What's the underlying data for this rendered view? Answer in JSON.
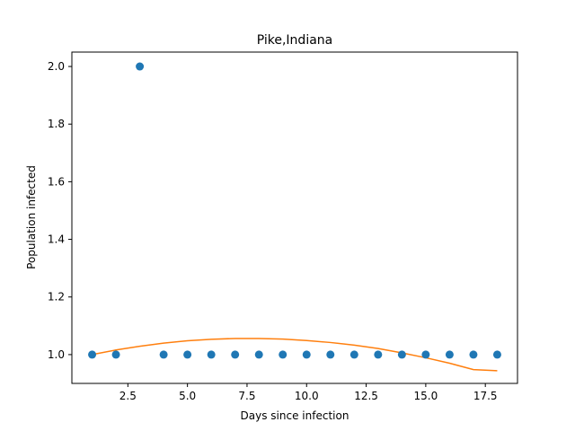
{
  "chart_data": {
    "type": "scatter",
    "title": "Pike,Indiana",
    "xlabel": "Days since infection",
    "ylabel": "Population infected",
    "xlim": [
      0.15,
      18.85
    ],
    "ylim": [
      0.9,
      2.05
    ],
    "xticks": [
      2.5,
      5.0,
      7.5,
      10.0,
      12.5,
      15.0,
      17.5
    ],
    "xtick_labels": [
      "2.5",
      "5.0",
      "7.5",
      "10.0",
      "12.5",
      "15.0",
      "17.5"
    ],
    "yticks": [
      1.0,
      1.2,
      1.4,
      1.6,
      1.8,
      2.0
    ],
    "ytick_labels": [
      "1.0",
      "1.2",
      "1.4",
      "1.6",
      "1.8",
      "2.0"
    ],
    "grid": false,
    "series": [
      {
        "kind": "points",
        "color": "#1f77b4",
        "x": [
          1,
          2,
          3,
          4,
          5,
          6,
          7,
          8,
          9,
          10,
          11,
          12,
          13,
          14,
          15,
          16,
          17,
          18
        ],
        "y": [
          1,
          1,
          2,
          1,
          1,
          1,
          1,
          1,
          1,
          1,
          1,
          1,
          1,
          1,
          1,
          1,
          1,
          1
        ]
      },
      {
        "kind": "fit-line",
        "color": "#ff7f0e",
        "x": [
          1,
          2,
          3,
          4,
          5,
          6,
          7,
          8,
          9,
          10,
          11,
          12,
          13,
          14,
          15,
          16,
          17,
          18
        ],
        "y": [
          1.0,
          1.016,
          1.029,
          1.04,
          1.048,
          1.053,
          1.056,
          1.056,
          1.054,
          1.049,
          1.042,
          1.033,
          1.021,
          1.006,
          0.989,
          0.97,
          0.948,
          0.944
        ]
      }
    ]
  }
}
